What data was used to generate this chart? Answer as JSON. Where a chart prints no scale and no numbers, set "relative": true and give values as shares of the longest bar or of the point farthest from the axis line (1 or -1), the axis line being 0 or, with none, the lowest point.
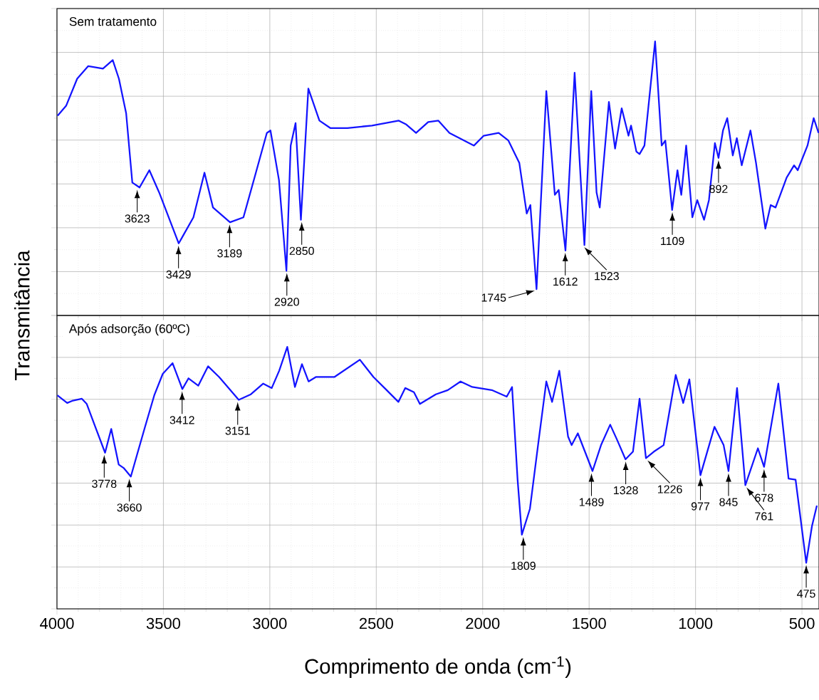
{
  "chart_data": [
    {
      "type": "line",
      "title": "Sem tratamento",
      "ylabel": "Transmitância",
      "relative": true,
      "color": "#1414ff",
      "grid": true,
      "tick_labels": false,
      "xlim": [
        4000,
        420
      ],
      "xticks": [
        4000,
        3500,
        3000,
        2500,
        2000,
        1500,
        1000,
        500
      ],
      "x": [
        3997,
        3957,
        3905,
        3853,
        3784,
        3738,
        3709,
        3675,
        3646,
        3612,
        3566,
        3520,
        3428,
        3359,
        3307,
        3267,
        3187,
        3124,
        3072,
        3014,
        2997,
        2957,
        2922,
        2902,
        2879,
        2854,
        2819,
        2767,
        2716,
        2635,
        2520,
        2394,
        2359,
        2313,
        2256,
        2208,
        2156,
        2041,
        1995,
        1925,
        1879,
        1828,
        1793,
        1776,
        1747,
        1701,
        1661,
        1643,
        1611,
        1568,
        1522,
        1490,
        1465,
        1450,
        1407,
        1378,
        1347,
        1315,
        1303,
        1278,
        1263,
        1240,
        1190,
        1159,
        1142,
        1110,
        1085,
        1067,
        1044,
        1015,
        992,
        960,
        937,
        909,
        892,
        871,
        851,
        825,
        806,
        783,
        742,
        716,
        672,
        647,
        624,
        572,
        537,
        520,
        474,
        445,
        422
      ],
      "values": [
        0.729,
        0.765,
        0.864,
        0.91,
        0.901,
        0.932,
        0.864,
        0.738,
        0.485,
        0.467,
        0.53,
        0.449,
        0.263,
        0.358,
        0.521,
        0.394,
        0.34,
        0.358,
        0.503,
        0.666,
        0.675,
        0.494,
        0.163,
        0.62,
        0.702,
        0.349,
        0.828,
        0.711,
        0.684,
        0.684,
        0.693,
        0.711,
        0.697,
        0.666,
        0.706,
        0.711,
        0.666,
        0.62,
        0.656,
        0.666,
        0.638,
        0.557,
        0.372,
        0.403,
        0.096,
        0.819,
        0.44,
        0.458,
        0.237,
        0.886,
        0.257,
        0.819,
        0.449,
        0.394,
        0.779,
        0.609,
        0.756,
        0.656,
        0.693,
        0.598,
        0.589,
        0.62,
        1.0,
        0.62,
        0.638,
        0.385,
        0.53,
        0.44,
        0.62,
        0.358,
        0.421,
        0.349,
        0.421,
        0.629,
        0.575,
        0.675,
        0.72,
        0.584,
        0.647,
        0.548,
        0.675,
        0.557,
        0.317,
        0.403,
        0.394,
        0.503,
        0.548,
        0.53,
        0.62,
        0.72,
        0.666
      ],
      "annotations": [
        {
          "text": "3623",
          "x": 3623,
          "y": 0.467
        },
        {
          "text": "3429",
          "x": 3429,
          "y": 0.263
        },
        {
          "text": "3189",
          "x": 3189,
          "y": 0.34
        },
        {
          "text": "2920",
          "x": 2920,
          "y": 0.163
        },
        {
          "text": "2850",
          "x": 2850,
          "y": 0.349
        },
        {
          "text": "1745",
          "x": 1745,
          "y": 0.096
        },
        {
          "text": "1612",
          "x": 1612,
          "y": 0.237
        },
        {
          "text": "1523",
          "x": 1523,
          "y": 0.257
        },
        {
          "text": "1109",
          "x": 1109,
          "y": 0.385
        },
        {
          "text": "892",
          "x": 892,
          "y": 0.575
        }
      ]
    },
    {
      "type": "line",
      "title": "Após adsorção (60ºC)",
      "xlabel": "Comprimento de onda (cm$^{-1}$)",
      "relative": true,
      "color": "#1414ff",
      "grid": true,
      "tick_labels": "x",
      "xlim": [
        4000,
        420
      ],
      "xticks": [
        4000,
        3500,
        3000,
        2500,
        2000,
        1500,
        1000,
        500
      ],
      "x": [
        3998,
        3952,
        3929,
        3883,
        3860,
        3820,
        3774,
        3745,
        3710,
        3687,
        3653,
        3624,
        3589,
        3543,
        3503,
        3457,
        3411,
        3382,
        3336,
        3290,
        3238,
        3146,
        3089,
        3031,
        2991,
        2956,
        2918,
        2882,
        2849,
        2818,
        2784,
        2697,
        2577,
        2513,
        2456,
        2396,
        2364,
        2323,
        2295,
        2220,
        2164,
        2104,
        2049,
        1957,
        1887,
        1862,
        1836,
        1816,
        1778,
        1738,
        1701,
        1674,
        1640,
        1599,
        1582,
        1553,
        1484,
        1444,
        1401,
        1369,
        1329,
        1294,
        1263,
        1233,
        1196,
        1150,
        1093,
        1058,
        1029,
        977,
        911,
        868,
        845,
        805,
        766,
        707,
        678,
        611,
        563,
        530,
        480,
        453,
        430
      ],
      "values": [
        0.815,
        0.786,
        0.794,
        0.802,
        0.782,
        0.695,
        0.596,
        0.687,
        0.551,
        0.538,
        0.505,
        0.588,
        0.687,
        0.815,
        0.897,
        0.938,
        0.839,
        0.88,
        0.852,
        0.926,
        0.885,
        0.798,
        0.819,
        0.86,
        0.843,
        0.909,
        1.0,
        0.847,
        0.934,
        0.868,
        0.885,
        0.885,
        0.951,
        0.885,
        0.839,
        0.79,
        0.843,
        0.827,
        0.782,
        0.819,
        0.835,
        0.868,
        0.847,
        0.835,
        0.81,
        0.847,
        0.493,
        0.283,
        0.382,
        0.637,
        0.868,
        0.79,
        0.909,
        0.658,
        0.625,
        0.67,
        0.526,
        0.625,
        0.703,
        0.646,
        0.571,
        0.6,
        0.802,
        0.575,
        0.6,
        0.625,
        0.893,
        0.786,
        0.876,
        0.51,
        0.695,
        0.625,
        0.526,
        0.843,
        0.472,
        0.613,
        0.542,
        0.86,
        0.497,
        0.493,
        0.176,
        0.316,
        0.394
      ],
      "annotations": [
        {
          "text": "3778",
          "x": 3778,
          "y": 0.596
        },
        {
          "text": "3660",
          "x": 3660,
          "y": 0.505
        },
        {
          "text": "3412",
          "x": 3412,
          "y": 0.839
        },
        {
          "text": "3151",
          "x": 3151,
          "y": 0.798
        },
        {
          "text": "1809",
          "x": 1809,
          "y": 0.283
        },
        {
          "text": "1489",
          "x": 1489,
          "y": 0.526
        },
        {
          "text": "1328",
          "x": 1328,
          "y": 0.571
        },
        {
          "text": "1226",
          "x": 1226,
          "y": 0.575
        },
        {
          "text": "977",
          "x": 977,
          "y": 0.51
        },
        {
          "text": "845",
          "x": 845,
          "y": 0.526
        },
        {
          "text": "761",
          "x": 761,
          "y": 0.472
        },
        {
          "text": "678",
          "x": 678,
          "y": 0.542
        },
        {
          "text": "475",
          "x": 480,
          "y": 0.176
        }
      ]
    }
  ]
}
